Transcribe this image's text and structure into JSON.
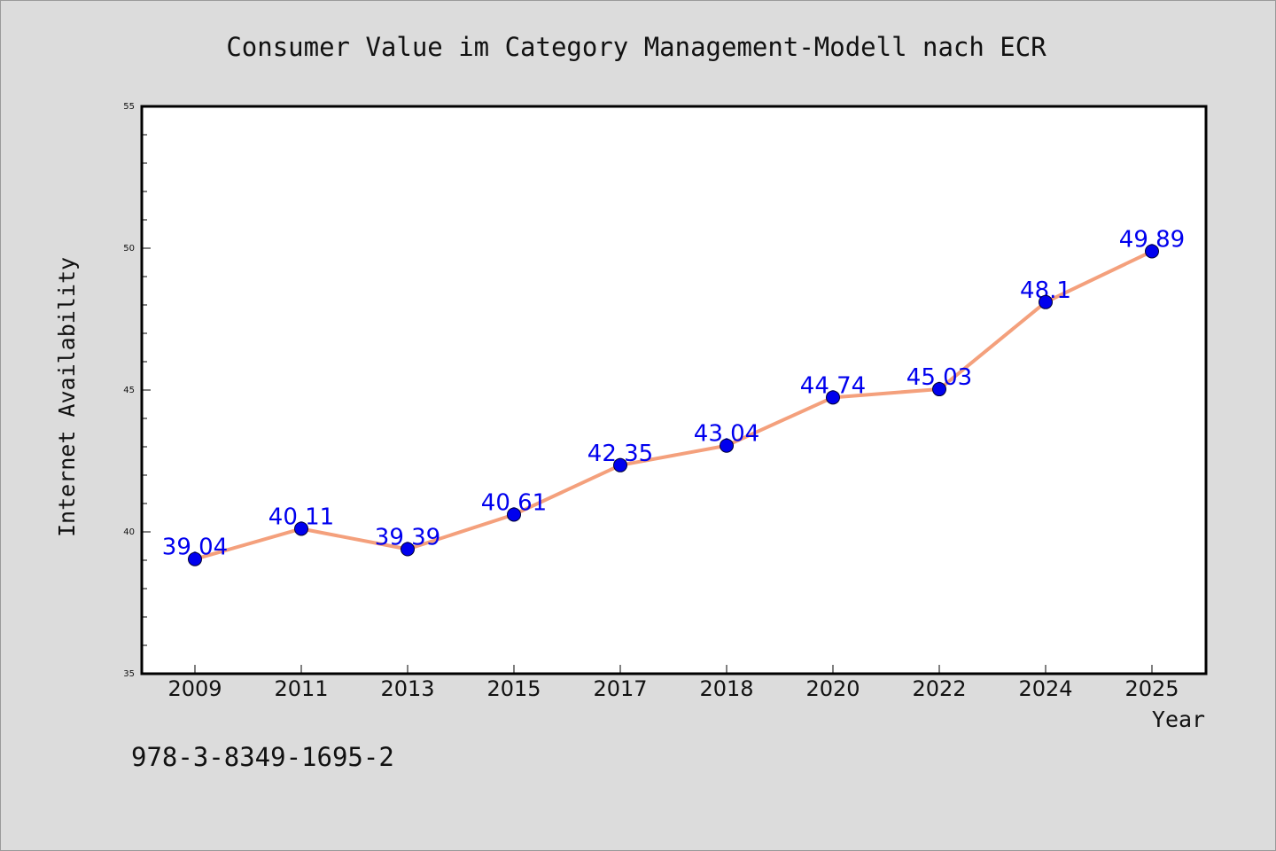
{
  "chart_data": {
    "type": "line",
    "title": "Consumer Value im Category Management-Modell nach ECR",
    "xlabel": "Year",
    "ylabel": "Internet Availability",
    "categories": [
      "2009",
      "2011",
      "2013",
      "2015",
      "2017",
      "2018",
      "2020",
      "2022",
      "2024",
      "2025"
    ],
    "series": [
      {
        "values": [
          39.04,
          40.11,
          39.39,
          40.61,
          42.35,
          43.04,
          44.74,
          45.03,
          48.1,
          49.89
        ],
        "labels": [
          "39.04",
          "40.11",
          "39.39",
          "40.61",
          "42.35",
          "43.04",
          "44.74",
          "45.03",
          "48.1",
          "49.89"
        ],
        "line_color": "#f4a07c",
        "marker_color": "#0000ee"
      }
    ],
    "ylim": [
      35,
      55
    ],
    "yticks": [
      35,
      40,
      45,
      50,
      55
    ],
    "ytick_labels": [
      "35",
      "40",
      "45",
      "50",
      "55"
    ],
    "grid": false,
    "legend": "none",
    "label_color": "#0000ee"
  },
  "footer": {
    "code": "978-3-8349-1695-2"
  }
}
